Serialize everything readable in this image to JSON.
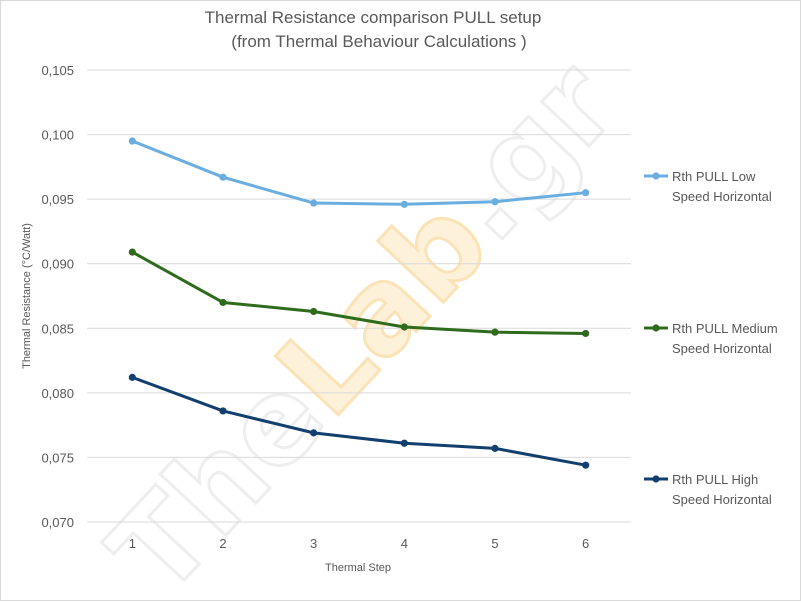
{
  "chart_data": {
    "type": "line",
    "title": "Thermal Resistance comparison  PULL setup",
    "subtitle": "(from Thermal Behaviour Calculations )",
    "xlabel": "Thermal Step",
    "ylabel": "Thermal Resistance (°C/Watt)",
    "categories": [
      "1",
      "2",
      "3",
      "4",
      "5",
      "6"
    ],
    "ylim": [
      0.07,
      0.105
    ],
    "yticks": [
      0.07,
      0.075,
      0.08,
      0.085,
      0.09,
      0.095,
      0.1,
      0.105
    ],
    "ytick_labels": [
      "0,070",
      "0,075",
      "0,080",
      "0,085",
      "0,090",
      "0,095",
      "0,100",
      "0,105"
    ],
    "grid": true,
    "legend_position": "right",
    "watermark": "TheLab.gr",
    "series": [
      {
        "name": "Rth PULL Low Speed Horizontal",
        "legend_lines": [
          "Rth PULL Low",
          "Speed Horizontal"
        ],
        "color": "#6aaee0",
        "values": [
          0.0995,
          0.0967,
          0.0947,
          0.0946,
          0.0948,
          0.0955
        ]
      },
      {
        "name": "Rth PULL Medium Speed Horizontal",
        "legend_lines": [
          "Rth PULL Medium",
          "Speed Horizontal"
        ],
        "color": "#2f6b1d",
        "values": [
          0.0909,
          0.087,
          0.0863,
          0.0851,
          0.0847,
          0.0846
        ]
      },
      {
        "name": "Rth PULL High Speed Horizontal",
        "legend_lines": [
          "Rth PULL High",
          "Speed Horizontal"
        ],
        "color": "#123f6e",
        "values": [
          0.0812,
          0.0786,
          0.0769,
          0.0761,
          0.0757,
          0.0744
        ]
      }
    ]
  }
}
